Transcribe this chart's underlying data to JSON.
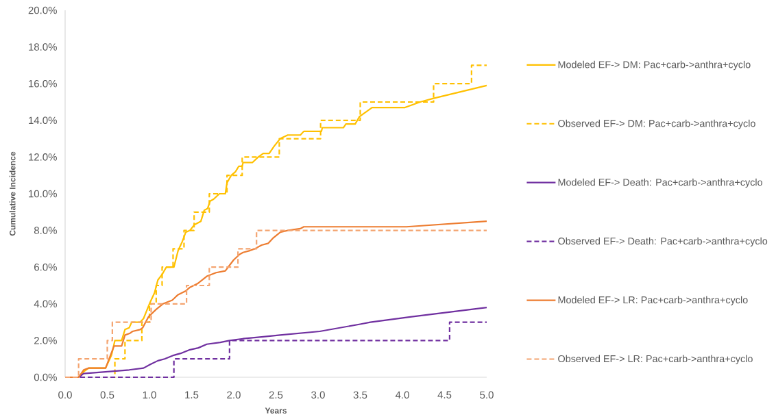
{
  "chart_data": {
    "type": "line",
    "xlabel": "Years",
    "ylabel": "Cumulative Incidence",
    "xlim": [
      0,
      5
    ],
    "ylim": [
      0,
      20
    ],
    "xticks": [
      {
        "value": 0,
        "label": "0.0"
      },
      {
        "value": 0.5,
        "label": "0.5"
      },
      {
        "value": 1,
        "label": "1.0"
      },
      {
        "value": 1.5,
        "label": "1.5"
      },
      {
        "value": 2,
        "label": "2.0"
      },
      {
        "value": 2.5,
        "label": "2.5"
      },
      {
        "value": 3,
        "label": "3.0"
      },
      {
        "value": 3.5,
        "label": "3.5"
      },
      {
        "value": 4,
        "label": "4.0"
      },
      {
        "value": 4.5,
        "label": "4.5"
      },
      {
        "value": 5,
        "label": "5.0"
      }
    ],
    "yticks": [
      {
        "value": 0,
        "label": "0.0%"
      },
      {
        "value": 2,
        "label": "2.0%"
      },
      {
        "value": 4,
        "label": "4.0%"
      },
      {
        "value": 6,
        "label": "6.0%"
      },
      {
        "value": 8,
        "label": "8.0%"
      },
      {
        "value": 10,
        "label": "10.0%"
      },
      {
        "value": 12,
        "label": "12.0%"
      },
      {
        "value": 14,
        "label": "14.0%"
      },
      {
        "value": 16,
        "label": "16.0%"
      },
      {
        "value": 18,
        "label": "18.0%"
      },
      {
        "value": 20,
        "label": "20.0%"
      }
    ],
    "legend": "right",
    "marker": "none",
    "series": [
      {
        "name": "Modeled EF-> DM: Pac+carb->anthra+cyclo",
        "type": "line",
        "line_style": "solid",
        "color": "#ffc000",
        "x": [
          0,
          0.16,
          0.22,
          0.28,
          0.48,
          0.55,
          0.59,
          0.67,
          0.71,
          0.76,
          0.79,
          0.89,
          0.93,
          1.0,
          1.06,
          1.1,
          1.15,
          1.2,
          1.29,
          1.34,
          1.39,
          1.43,
          1.48,
          1.53,
          1.61,
          1.65,
          1.69,
          1.72,
          1.76,
          1.83,
          1.9,
          1.92,
          1.97,
          2.02,
          2.06,
          2.1,
          2.11,
          2.22,
          2.29,
          2.35,
          2.42,
          2.48,
          2.55,
          2.64,
          2.79,
          2.83,
          3.04,
          3.05,
          3.3,
          3.33,
          3.44,
          3.49,
          3.55,
          3.64,
          4.03,
          4.21,
          4.37,
          5
        ],
        "values": [
          0,
          0,
          0.3,
          0.5,
          0.5,
          1.2,
          2.0,
          2.0,
          2.6,
          2.7,
          3.0,
          3.0,
          3.2,
          4.0,
          4.6,
          5.3,
          5.6,
          6.0,
          6.0,
          6.9,
          7.4,
          7.9,
          8.0,
          8.3,
          8.5,
          9.1,
          9.2,
          9.6,
          9.7,
          10.0,
          10.0,
          10.6,
          11.0,
          11.2,
          11.5,
          11.5,
          11.7,
          11.7,
          12.0,
          12.2,
          12.2,
          12.6,
          13.0,
          13.2,
          13.2,
          13.4,
          13.4,
          13.6,
          13.6,
          13.8,
          13.8,
          14.2,
          14.4,
          14.7,
          14.7,
          15.0,
          15.2,
          15.9
        ]
      },
      {
        "name": "Observed EF-> DM: Pac+carb->anthra+cyclo",
        "type": "step",
        "line_style": "dashed",
        "color": "#ffc000",
        "x": [
          0,
          0.59,
          0.71,
          0.91,
          1.0,
          1.08,
          1.15,
          1.28,
          1.41,
          1.53,
          1.71,
          1.92,
          2.1,
          2.54,
          3.03,
          3.5,
          4.37,
          4.82,
          5
        ],
        "values": [
          0,
          1,
          2,
          3,
          4,
          5,
          6,
          7,
          8,
          9,
          10,
          11,
          12,
          13,
          14,
          15,
          16,
          17,
          17
        ]
      },
      {
        "name": "Modeled EF-> Death: Pac+carb->anthra+cyclo",
        "type": "line",
        "line_style": "solid",
        "color": "#7030a0",
        "x": [
          0,
          0.16,
          0.22,
          0.49,
          0.76,
          0.93,
          1.01,
          1.1,
          1.18,
          1.29,
          1.37,
          1.48,
          1.58,
          1.68,
          1.84,
          1.95,
          2.11,
          2.33,
          2.55,
          3.02,
          3.51,
          3.62,
          4.11,
          5
        ],
        "values": [
          0,
          0,
          0.2,
          0.3,
          0.4,
          0.5,
          0.7,
          0.9,
          1.0,
          1.2,
          1.3,
          1.5,
          1.6,
          1.8,
          1.9,
          2.0,
          2.1,
          2.2,
          2.3,
          2.5,
          2.9,
          3.0,
          3.3,
          3.8
        ]
      },
      {
        "name": "Observed EF-> Death: Pac+carb->anthra+cyclo",
        "type": "step",
        "line_style": "dashed",
        "color": "#7030a0",
        "x": [
          0,
          1.29,
          1.95,
          4.56,
          5
        ],
        "values": [
          0,
          1,
          2,
          3,
          3
        ]
      },
      {
        "name": "Modeled EF-> LR: Pac+carb->anthra+cyclo",
        "type": "line",
        "line_style": "solid",
        "color": "#ed7d31",
        "x": [
          0,
          0.16,
          0.22,
          0.28,
          0.48,
          0.58,
          0.67,
          0.71,
          0.77,
          0.8,
          0.89,
          0.92,
          0.99,
          1.08,
          1.16,
          1.27,
          1.34,
          1.43,
          1.48,
          1.57,
          1.68,
          1.79,
          1.9,
          1.95,
          2.0,
          2.07,
          2.11,
          2.19,
          2.25,
          2.33,
          2.41,
          2.47,
          2.55,
          2.64,
          2.79,
          2.83,
          4.05,
          5
        ],
        "values": [
          0,
          0,
          0.4,
          0.5,
          0.5,
          1.7,
          1.7,
          2.3,
          2.4,
          2.5,
          2.6,
          2.7,
          3.3,
          3.7,
          4.0,
          4.2,
          4.5,
          4.7,
          4.9,
          5.1,
          5.5,
          5.7,
          5.8,
          6.1,
          6.4,
          6.7,
          6.8,
          6.9,
          7.0,
          7.2,
          7.3,
          7.6,
          7.9,
          8.0,
          8.1,
          8.2,
          8.2,
          8.5
        ]
      },
      {
        "name": "Observed EF-> LR: Pac+carb->anthra+cyclo",
        "type": "step",
        "line_style": "dashed",
        "color": "#f4a470",
        "x": [
          0,
          0.16,
          0.5,
          0.56,
          1.02,
          1.44,
          1.71,
          2.05,
          2.27,
          5
        ],
        "values": [
          0,
          1,
          2,
          3,
          4,
          5,
          6,
          7,
          8,
          8
        ]
      }
    ]
  }
}
